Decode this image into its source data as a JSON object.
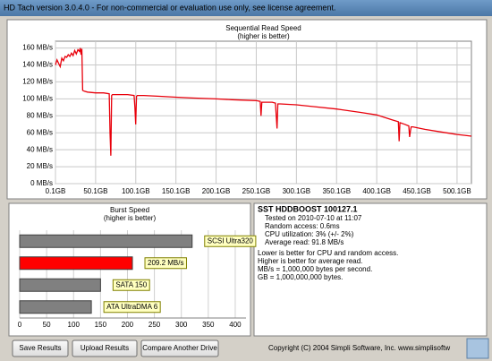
{
  "window": {
    "title": "HD Tach version 3.0.4.0  - For non-commercial or evaluation use only, see license agreement."
  },
  "chart_data": [
    {
      "type": "line",
      "title": "Sequential Read Speed",
      "subtitle": "(higher is better)",
      "color": "#e8000b",
      "grid": true,
      "x": [
        0.1,
        2,
        4,
        6,
        8,
        10,
        12,
        14,
        16,
        18,
        20,
        22,
        24,
        26,
        28,
        30,
        31,
        32,
        33,
        34,
        36,
        40,
        50,
        60,
        67,
        68,
        69,
        70,
        71,
        80,
        90,
        98,
        99,
        100,
        101,
        102,
        110,
        130,
        150,
        170,
        200,
        220,
        250,
        255,
        256,
        257,
        260,
        270,
        274,
        275,
        276,
        277,
        280,
        300,
        320,
        350,
        380,
        400,
        420,
        427,
        428,
        429,
        435,
        440,
        441,
        442,
        443,
        445,
        460,
        480,
        500,
        510,
        518
      ],
      "values": [
        140,
        146,
        142,
        138,
        148,
        145,
        150,
        149,
        152,
        150,
        154,
        151,
        157,
        153,
        158,
        156,
        160,
        152,
        159,
        110,
        109,
        108,
        107,
        107,
        106,
        60,
        33,
        104,
        105,
        105,
        105,
        104,
        90,
        70,
        103,
        104,
        104,
        103,
        102,
        101,
        100,
        99,
        98,
        97,
        80,
        96,
        96,
        96,
        95,
        80,
        65,
        94,
        94,
        93,
        91,
        88,
        84,
        81,
        75,
        73,
        50,
        72,
        70,
        68,
        55,
        62,
        67,
        67,
        64,
        61,
        58,
        57,
        56
      ],
      "xlim": [
        0.1,
        518
      ],
      "ylim": [
        0,
        168
      ],
      "xticks": [
        {
          "value": 0.1,
          "label": "0.1GB"
        },
        {
          "value": 50.1,
          "label": "50.1GB"
        },
        {
          "value": 100.1,
          "label": "100.1GB"
        },
        {
          "value": 150.1,
          "label": "150.1GB"
        },
        {
          "value": 200.1,
          "label": "200.1GB"
        },
        {
          "value": 250.1,
          "label": "250.1GB"
        },
        {
          "value": 300.1,
          "label": "300.1GB"
        },
        {
          "value": 350.1,
          "label": "350.1GB"
        },
        {
          "value": 400.1,
          "label": "400.1GB"
        },
        {
          "value": 450.1,
          "label": "450.1GB"
        },
        {
          "value": 500.1,
          "label": "500.1GB"
        }
      ],
      "yticks": [
        {
          "value": 0,
          "label": "0 MB/s"
        },
        {
          "value": 20,
          "label": "20 MB/s"
        },
        {
          "value": 40,
          "label": "40 MB/s"
        },
        {
          "value": 60,
          "label": "60 MB/s"
        },
        {
          "value": 80,
          "label": "80 MB/s"
        },
        {
          "value": 100,
          "label": "100 MB/s"
        },
        {
          "value": 120,
          "label": "120 MB/s"
        },
        {
          "value": 140,
          "label": "140 MB/s"
        },
        {
          "value": 160,
          "label": "160 MB/s"
        }
      ]
    },
    {
      "type": "hbar",
      "title": "Burst Speed",
      "subtitle": "(higher is better)",
      "categories": [
        "SCSI Ultra320",
        null,
        "SATA 150",
        "ATA UltraDMA 6"
      ],
      "values": [
        320,
        209.2,
        150,
        133
      ],
      "value_labels": [
        null,
        "209.2 MB/s",
        null,
        null
      ],
      "colors": [
        "#808080",
        "#ff0000",
        "#808080",
        "#808080"
      ],
      "xlim": [
        0,
        420
      ],
      "xticks": [
        0,
        50,
        100,
        150,
        200,
        250,
        300,
        350,
        400
      ],
      "grid": true
    }
  ],
  "info": {
    "heading": "SST HDDBOOST 100127.1",
    "lines": [
      "Tested on 2010-07-10 at 11:07",
      "Random access: 0.6ms",
      "CPU utilization: 3% (+/- 2%)",
      "Average read: 91.8 MB/s"
    ]
  },
  "notes": [
    "Lower is better for CPU and random access.",
    "Higher is better for average read.",
    "MB/s = 1,000,000 bytes per second.",
    "GB = 1,000,000,000 bytes."
  ],
  "buttons": [
    "Save Results",
    "Upload Results",
    "Compare Another Drive"
  ],
  "copyright": "Copyright (C) 2004 Simpli Software, Inc. www.simplisoftw"
}
